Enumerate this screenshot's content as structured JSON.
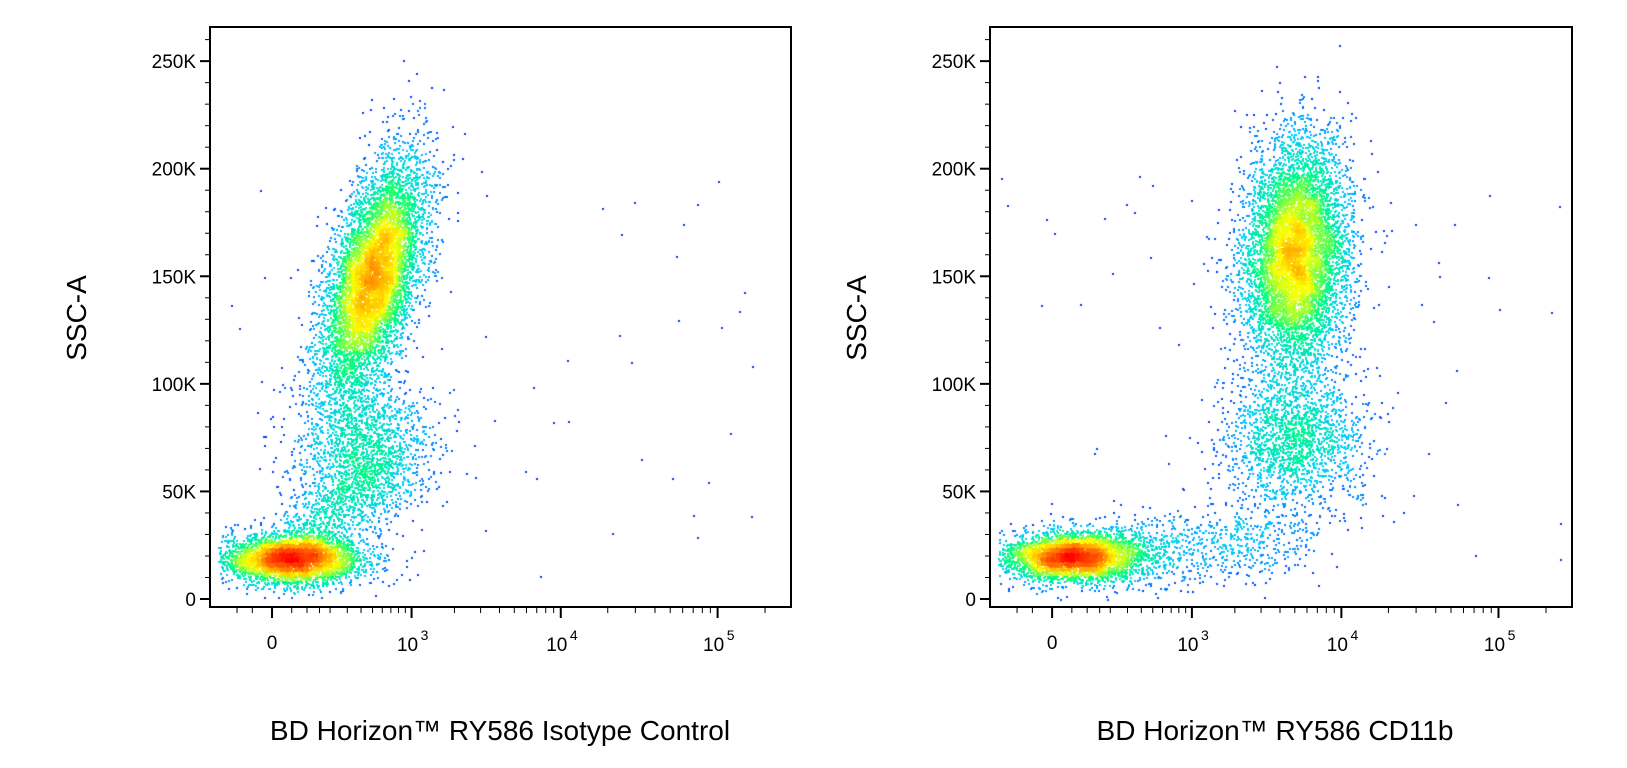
{
  "chart_data": [
    {
      "type": "scatter",
      "subtype": "density-dot-plot",
      "xlabel": "BD Horizon™ RY586 Isotype Control",
      "ylabel": "SSC-A",
      "x_scale": "biexponential",
      "y_scale": "linear",
      "ylim": [
        0,
        262144
      ],
      "y_ticks": [
        {
          "value": 0,
          "label": "0"
        },
        {
          "value": 50000,
          "label": "50K"
        },
        {
          "value": 100000,
          "label": "100K"
        },
        {
          "value": 150000,
          "label": "150K"
        },
        {
          "value": 200000,
          "label": "200K"
        },
        {
          "value": 250000,
          "label": "250K"
        }
      ],
      "x_ticks": [
        {
          "value": 0,
          "label": "0"
        },
        {
          "value": 1000,
          "base": "10",
          "exp": "3"
        },
        {
          "value": 10000,
          "base": "10",
          "exp": "4"
        },
        {
          "value": 100000,
          "base": "10",
          "exp": "5"
        }
      ],
      "populations": [
        {
          "name": "debris",
          "x_center": 50,
          "y_center": 19000,
          "count": 4200
        },
        {
          "name": "main",
          "x_center": 500,
          "y_center": 150000,
          "count": 7500
        },
        {
          "name": "low-ssc",
          "x_center": 420,
          "y_center": 70000,
          "count": 1600
        }
      ],
      "color_scale": [
        "#0000ff",
        "#00c8ff",
        "#00ff80",
        "#ffff00",
        "#ff8000",
        "#ff0000"
      ]
    },
    {
      "type": "scatter",
      "subtype": "density-dot-plot",
      "xlabel": "BD Horizon™ RY586 CD11b",
      "ylabel": "SSC-A",
      "x_scale": "biexponential",
      "y_scale": "linear",
      "ylim": [
        0,
        262144
      ],
      "y_ticks": [
        {
          "value": 0,
          "label": "0"
        },
        {
          "value": 50000,
          "label": "50K"
        },
        {
          "value": 100000,
          "label": "100K"
        },
        {
          "value": 150000,
          "label": "150K"
        },
        {
          "value": 200000,
          "label": "200K"
        },
        {
          "value": 250000,
          "label": "250K"
        }
      ],
      "x_ticks": [
        {
          "value": 0,
          "label": "0"
        },
        {
          "value": 1000,
          "base": "10",
          "exp": "3"
        },
        {
          "value": 10000,
          "base": "10",
          "exp": "4"
        },
        {
          "value": 100000,
          "base": "10",
          "exp": "5"
        }
      ],
      "populations": [
        {
          "name": "debris",
          "x_center": 50,
          "y_center": 20000,
          "count": 4200
        },
        {
          "name": "main",
          "x_center": 5000,
          "y_center": 160000,
          "count": 7500
        },
        {
          "name": "low-ssc",
          "x_center": 5000,
          "y_center": 75000,
          "count": 1800
        }
      ],
      "color_scale": [
        "#0000ff",
        "#00c8ff",
        "#00ff80",
        "#ffff00",
        "#ff8000",
        "#ff0000"
      ]
    }
  ]
}
